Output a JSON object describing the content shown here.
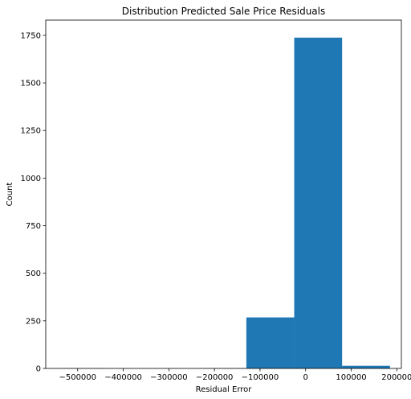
{
  "chart_data": {
    "type": "histogram",
    "title": "Distribution Predicted Sale Price Residuals",
    "xlabel": "Residual Error",
    "ylabel": "Count",
    "xlim": [
      -570000,
      210000
    ],
    "ylim": [
      0,
      1830
    ],
    "xticks": [
      -500000,
      -400000,
      -300000,
      -200000,
      -100000,
      0,
      100000,
      200000
    ],
    "xtick_labels": [
      "−500000",
      "−400000",
      "−300000",
      "−200000",
      "−100000",
      "0",
      "100000",
      "200000"
    ],
    "yticks": [
      0,
      250,
      500,
      750,
      1000,
      1250,
      1500,
      1750
    ],
    "ytick_labels": [
      "0",
      "250",
      "500",
      "750",
      "1000",
      "1250",
      "1500",
      "1750"
    ],
    "color": "#1f77b4",
    "bins": [
      {
        "x0": -540000,
        "x1": -435000,
        "count": 1
      },
      {
        "x0": -435000,
        "x1": -330000,
        "count": 0
      },
      {
        "x0": -330000,
        "x1": -225000,
        "count": 0
      },
      {
        "x0": -225000,
        "x1": -130000,
        "count": 1
      },
      {
        "x0": -130000,
        "x1": -25000,
        "count": 268
      },
      {
        "x0": -25000,
        "x1": 80000,
        "count": 1738
      },
      {
        "x0": 80000,
        "x1": 185000,
        "count": 14
      }
    ]
  }
}
